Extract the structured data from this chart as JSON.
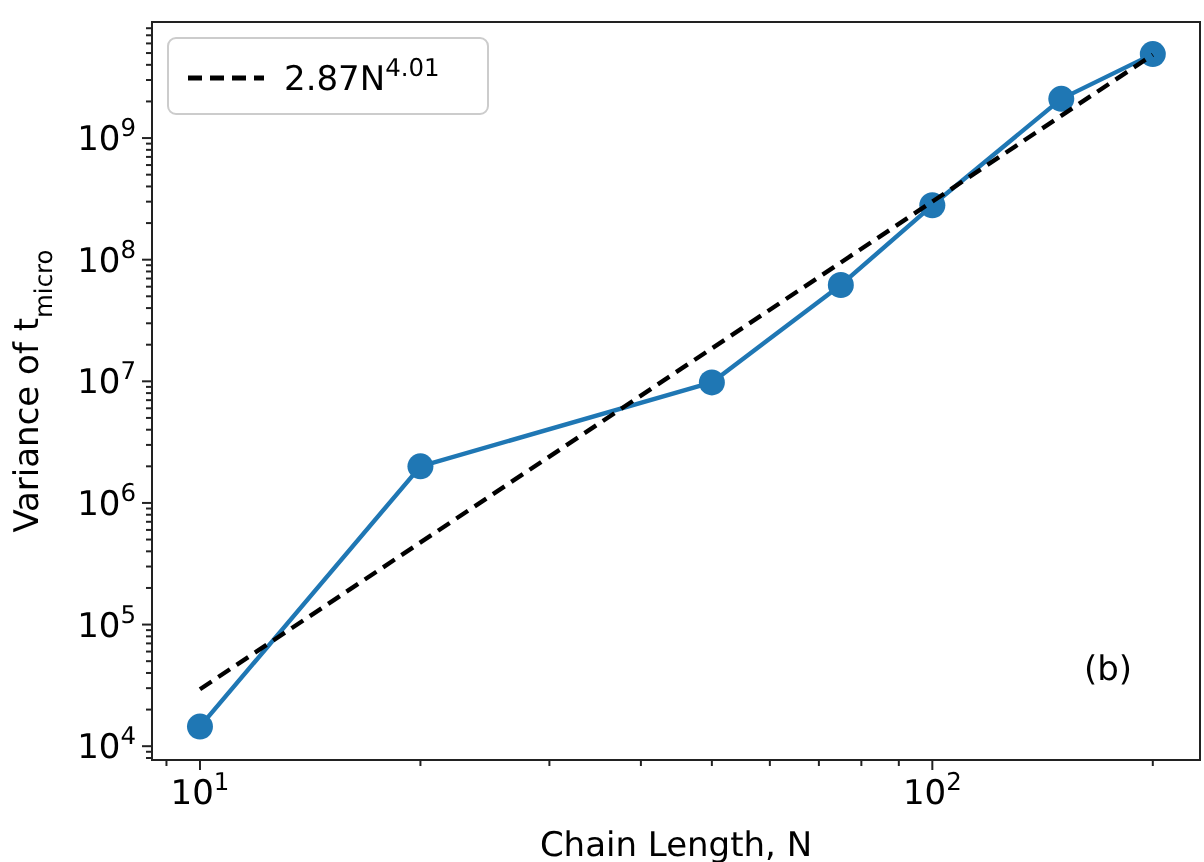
{
  "chart_data": {
    "type": "line",
    "xlabel": "Chain Length, N",
    "ylabel": "Variance of t$_{micro}$",
    "log": "xy",
    "grid": false,
    "legend": "top left",
    "xlim": [
      8.6,
      232
    ],
    "ylim": [
      7700,
      9000000000
    ],
    "xticks": [
      {
        "value": 9,
        "label": null
      },
      {
        "value": 10,
        "label": "10$^{1}$"
      },
      {
        "value": 20,
        "label": null
      },
      {
        "value": 30,
        "label": null
      },
      {
        "value": 40,
        "label": null
      },
      {
        "value": 50,
        "label": null
      },
      {
        "value": 60,
        "label": null
      },
      {
        "value": 70,
        "label": null
      },
      {
        "value": 80,
        "label": null
      },
      {
        "value": 90,
        "label": null
      },
      {
        "value": 100,
        "label": "10$^{2}$"
      },
      {
        "value": 200,
        "label": null
      }
    ],
    "yticks": [
      {
        "value": 8000,
        "label": null
      },
      {
        "value": 9000,
        "label": null
      },
      {
        "value": 10000,
        "label": "10$^{4}$"
      },
      {
        "value": 20000,
        "label": null
      },
      {
        "value": 30000,
        "label": null
      },
      {
        "value": 40000,
        "label": null
      },
      {
        "value": 50000,
        "label": null
      },
      {
        "value": 60000,
        "label": null
      },
      {
        "value": 70000,
        "label": null
      },
      {
        "value": 80000,
        "label": null
      },
      {
        "value": 90000,
        "label": null
      },
      {
        "value": 100000,
        "label": "10$^{5}$"
      },
      {
        "value": 200000,
        "label": null
      },
      {
        "value": 300000,
        "label": null
      },
      {
        "value": 400000,
        "label": null
      },
      {
        "value": 500000,
        "label": null
      },
      {
        "value": 600000,
        "label": null
      },
      {
        "value": 700000,
        "label": null
      },
      {
        "value": 800000,
        "label": null
      },
      {
        "value": 900000,
        "label": null
      },
      {
        "value": 1000000,
        "label": "10$^{6}$"
      },
      {
        "value": 2000000,
        "label": null
      },
      {
        "value": 3000000,
        "label": null
      },
      {
        "value": 4000000,
        "label": null
      },
      {
        "value": 5000000,
        "label": null
      },
      {
        "value": 6000000,
        "label": null
      },
      {
        "value": 7000000,
        "label": null
      },
      {
        "value": 8000000,
        "label": null
      },
      {
        "value": 9000000,
        "label": null
      },
      {
        "value": 10000000,
        "label": "10$^{7}$"
      },
      {
        "value": 20000000,
        "label": null
      },
      {
        "value": 30000000,
        "label": null
      },
      {
        "value": 40000000,
        "label": null
      },
      {
        "value": 50000000,
        "label": null
      },
      {
        "value": 60000000,
        "label": null
      },
      {
        "value": 70000000,
        "label": null
      },
      {
        "value": 80000000,
        "label": null
      },
      {
        "value": 90000000,
        "label": null
      },
      {
        "value": 100000000,
        "label": "10$^{8}$"
      },
      {
        "value": 200000000,
        "label": null
      },
      {
        "value": 300000000,
        "label": null
      },
      {
        "value": 400000000,
        "label": null
      },
      {
        "value": 500000000,
        "label": null
      },
      {
        "value": 600000000,
        "label": null
      },
      {
        "value": 700000000,
        "label": null
      },
      {
        "value": 800000000,
        "label": null
      },
      {
        "value": 900000000,
        "label": null
      },
      {
        "value": 1000000000,
        "label": "10$^{9}$"
      },
      {
        "value": 2000000000,
        "label": null
      },
      {
        "value": 3000000000,
        "label": null
      },
      {
        "value": 4000000000,
        "label": null
      },
      {
        "value": 5000000000,
        "label": null
      },
      {
        "value": 6000000000,
        "label": null
      },
      {
        "value": 7000000000,
        "label": null
      },
      {
        "value": 8000000000,
        "label": null
      }
    ],
    "series": [
      {
        "color": "#1f77b4",
        "marker": "circle",
        "line_style": "solid",
        "x": [
          10,
          20,
          50,
          75,
          100,
          150,
          200
        ],
        "values": [
          14500,
          2000000,
          9800000,
          62000000,
          280000000,
          2100000000,
          4900000000
        ]
      },
      {
        "name": "2.87N$^{4.01}$",
        "color": "#000000",
        "marker": "none",
        "line_style": "dashed",
        "x": [
          10,
          200
        ],
        "values": [
          29400,
          4840000000
        ]
      }
    ],
    "annotations": [
      "(b)"
    ]
  }
}
